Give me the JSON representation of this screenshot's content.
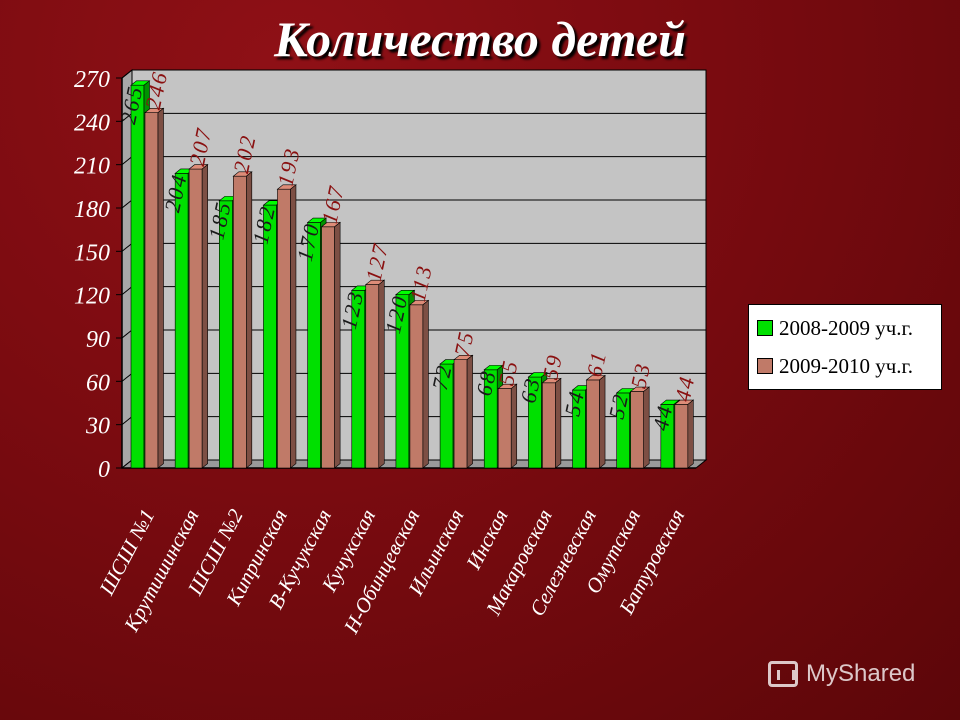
{
  "chart_data": {
    "type": "bar",
    "title": "Количество детей",
    "categories": [
      "ШСШ №1",
      "Крутишинская",
      "ШСШ №2",
      "Кипринская",
      "В-Кучукская",
      "Кучукская",
      "Н-Обинцевская",
      "Ильинская",
      "Инская",
      "Макаровская",
      "Селезневская",
      "Омутская",
      "Батуровская"
    ],
    "series": [
      {
        "name": "2008-2009 уч.г.",
        "color": "#00e000",
        "values": [
          265,
          204,
          185,
          182,
          170,
          123,
          120,
          72,
          68,
          63,
          54,
          52,
          44
        ]
      },
      {
        "name": "2009-2010 уч.г.",
        "color": "#c07a68",
        "values": [
          246,
          207,
          202,
          193,
          167,
          127,
          113,
          75,
          55,
          59,
          61,
          53,
          44
        ]
      }
    ],
    "yticks": [
      0,
      30,
      60,
      90,
      120,
      150,
      180,
      210,
      240,
      270
    ],
    "ylim": [
      0,
      270
    ],
    "grid": true,
    "legend_position": "right"
  },
  "watermark": {
    "text": "MyShared",
    "icon": "presentation-board-icon"
  }
}
